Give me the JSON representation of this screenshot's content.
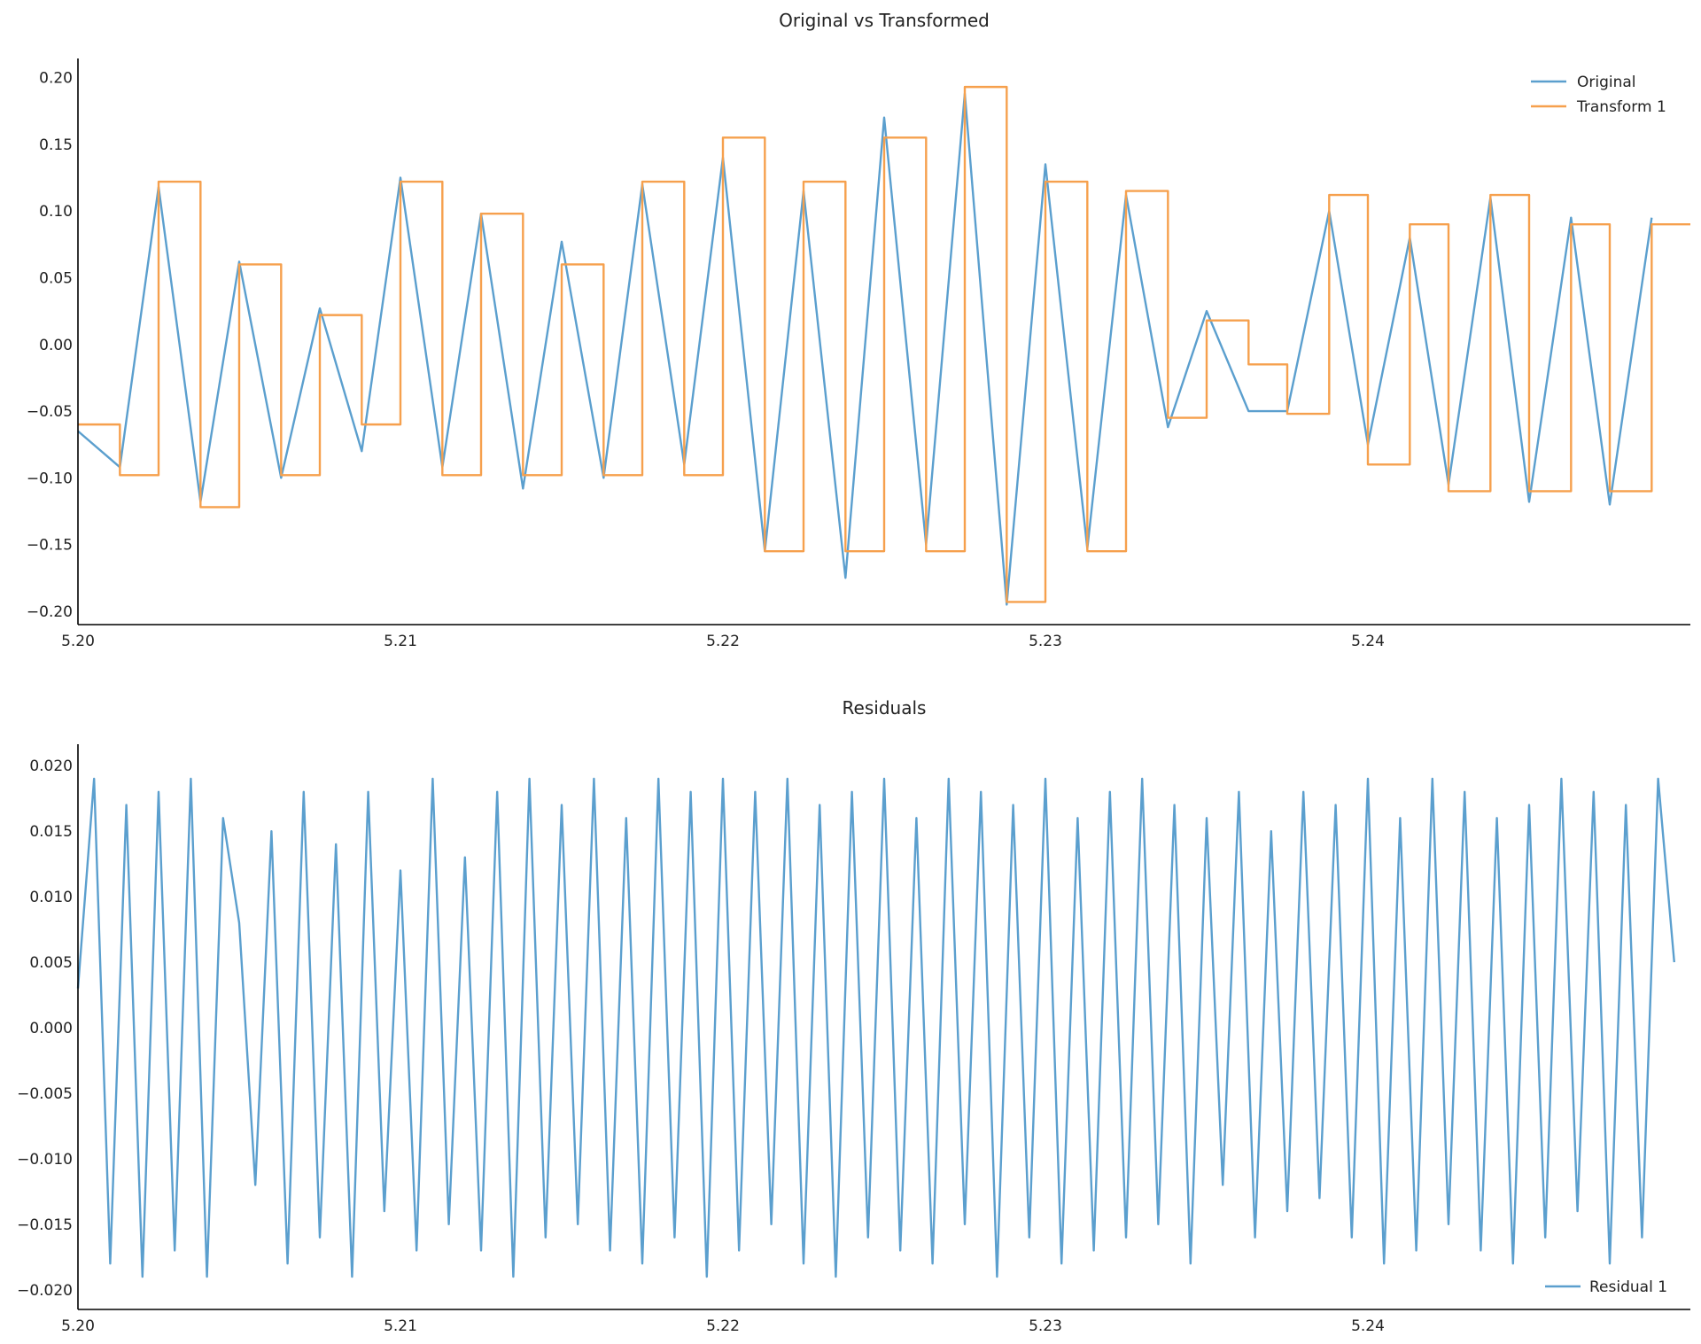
{
  "colors": {
    "original": "#5b9fce",
    "transform": "#f6a04d",
    "residual": "#5b9fce",
    "axis": "#000000"
  },
  "chart_data": [
    {
      "type": "line",
      "title": "Original vs Transformed",
      "xlim": [
        5.2,
        5.25
      ],
      "ylim": [
        -0.21,
        0.213
      ],
      "xticks": [
        5.2,
        5.21,
        5.22,
        5.23,
        5.24
      ],
      "xtick_labels": [
        "5.20",
        "5.21",
        "5.22",
        "5.23",
        "5.24"
      ],
      "yticks": [
        -0.2,
        -0.15,
        -0.1,
        -0.05,
        0.0,
        0.05,
        0.1,
        0.15,
        0.2
      ],
      "ytick_labels": [
        "−0.20",
        "−0.15",
        "−0.10",
        "−0.05",
        "0.00",
        "0.05",
        "0.10",
        "0.15",
        "0.20"
      ],
      "grid": false,
      "legend": "top-right",
      "series": [
        {
          "name": "Original",
          "style": "line",
          "x": [
            5.2,
            5.2013,
            5.2025,
            5.2038,
            5.205,
            5.2063,
            5.2075,
            5.2088,
            5.21,
            5.2113,
            5.2125,
            5.2138,
            5.215,
            5.2163,
            5.2175,
            5.2188,
            5.22,
            5.2213,
            5.2225,
            5.2238,
            5.225,
            5.2263,
            5.2275,
            5.2288,
            5.23,
            5.2313,
            5.2325,
            5.2338,
            5.235,
            5.2363,
            5.2375,
            5.2388,
            5.24,
            5.2413,
            5.2425,
            5.2438,
            5.245,
            5.2463,
            5.2475,
            5.2488
          ],
          "y": [
            -0.065,
            -0.092,
            0.118,
            -0.118,
            0.062,
            -0.1,
            0.027,
            -0.08,
            0.125,
            -0.092,
            0.098,
            -0.108,
            0.077,
            -0.1,
            0.12,
            -0.09,
            0.14,
            -0.155,
            0.115,
            -0.175,
            0.17,
            -0.15,
            0.188,
            -0.195,
            0.135,
            -0.153,
            0.112,
            -0.062,
            0.025,
            -0.05,
            -0.05,
            0.1,
            -0.075,
            0.08,
            -0.105,
            0.11,
            -0.118,
            0.095,
            -0.12,
            0.095
          ]
        },
        {
          "name": "Transform 1",
          "style": "step",
          "x": [
            5.2,
            5.2013,
            5.2025,
            5.2038,
            5.205,
            5.2063,
            5.2075,
            5.2088,
            5.21,
            5.2113,
            5.2125,
            5.2138,
            5.215,
            5.2163,
            5.2175,
            5.2188,
            5.22,
            5.2213,
            5.2225,
            5.2238,
            5.225,
            5.2263,
            5.2275,
            5.2288,
            5.23,
            5.2313,
            5.2325,
            5.2338,
            5.235,
            5.2363,
            5.2375,
            5.2388,
            5.24,
            5.2413,
            5.2425,
            5.2438,
            5.245,
            5.2463,
            5.2475,
            5.2488
          ],
          "y": [
            -0.06,
            -0.098,
            0.122,
            -0.122,
            0.06,
            -0.098,
            0.022,
            -0.06,
            0.122,
            -0.098,
            0.098,
            -0.098,
            0.06,
            -0.098,
            0.122,
            -0.098,
            0.155,
            -0.155,
            0.122,
            -0.155,
            0.155,
            -0.155,
            0.193,
            -0.193,
            0.122,
            -0.155,
            0.115,
            -0.055,
            0.018,
            -0.015,
            -0.052,
            0.112,
            -0.09,
            0.09,
            -0.11,
            0.112,
            -0.11,
            0.09,
            -0.11,
            0.09
          ]
        }
      ]
    },
    {
      "type": "line",
      "title": "Residuals",
      "xlim": [
        5.2,
        5.25
      ],
      "ylim": [
        -0.0215,
        0.0215
      ],
      "xticks": [
        5.2,
        5.21,
        5.22,
        5.23,
        5.24
      ],
      "xtick_labels": [
        "5.20",
        "5.21",
        "5.22",
        "5.23",
        "5.24"
      ],
      "yticks": [
        -0.02,
        -0.015,
        -0.01,
        -0.005,
        0.0,
        0.005,
        0.01,
        0.015,
        0.02
      ],
      "ytick_labels": [
        "−0.020",
        "−0.015",
        "−0.010",
        "−0.005",
        "0.000",
        "0.005",
        "0.010",
        "0.015",
        "0.020"
      ],
      "grid": false,
      "legend": "bottom-right",
      "series": [
        {
          "name": "Residual 1",
          "style": "line",
          "x": [
            5.2,
            5.2005,
            5.201,
            5.2015,
            5.202,
            5.2025,
            5.203,
            5.2035,
            5.204,
            5.2045,
            5.205,
            5.2055,
            5.206,
            5.2065,
            5.207,
            5.2075,
            5.208,
            5.2085,
            5.209,
            5.2095,
            5.21,
            5.2105,
            5.211,
            5.2115,
            5.212,
            5.2125,
            5.213,
            5.2135,
            5.214,
            5.2145,
            5.215,
            5.2155,
            5.216,
            5.2165,
            5.217,
            5.2175,
            5.218,
            5.2185,
            5.219,
            5.2195,
            5.22,
            5.2205,
            5.221,
            5.2215,
            5.222,
            5.2225,
            5.223,
            5.2235,
            5.224,
            5.2245,
            5.225,
            5.2255,
            5.226,
            5.2265,
            5.227,
            5.2275,
            5.228,
            5.2285,
            5.229,
            5.2295,
            5.23,
            5.2305,
            5.231,
            5.2315,
            5.232,
            5.2325,
            5.233,
            5.2335,
            5.234,
            5.2345,
            5.235,
            5.2355,
            5.236,
            5.2365,
            5.237,
            5.2375,
            5.238,
            5.2385,
            5.239,
            5.2395,
            5.24,
            5.2405,
            5.241,
            5.2415,
            5.242,
            5.2425,
            5.243,
            5.2435,
            5.244,
            5.2445,
            5.245,
            5.2455,
            5.246,
            5.2465,
            5.247,
            5.2475,
            5.248,
            5.2485,
            5.249,
            5.2495
          ],
          "y": [
            0.003,
            0.019,
            -0.018,
            0.017,
            -0.019,
            0.018,
            -0.017,
            0.019,
            -0.019,
            0.016,
            0.008,
            -0.012,
            0.015,
            -0.018,
            0.018,
            -0.016,
            0.014,
            -0.019,
            0.018,
            -0.014,
            0.012,
            -0.017,
            0.019,
            -0.015,
            0.013,
            -0.017,
            0.018,
            -0.019,
            0.019,
            -0.016,
            0.017,
            -0.015,
            0.019,
            -0.017,
            0.016,
            -0.018,
            0.019,
            -0.016,
            0.018,
            -0.019,
            0.019,
            -0.017,
            0.018,
            -0.015,
            0.019,
            -0.018,
            0.017,
            -0.019,
            0.018,
            -0.016,
            0.019,
            -0.017,
            0.016,
            -0.018,
            0.019,
            -0.015,
            0.018,
            -0.019,
            0.017,
            -0.016,
            0.019,
            -0.018,
            0.016,
            -0.017,
            0.018,
            -0.016,
            0.019,
            -0.015,
            0.017,
            -0.018,
            0.016,
            -0.012,
            0.018,
            -0.016,
            0.015,
            -0.014,
            0.018,
            -0.013,
            0.017,
            -0.016,
            0.019,
            -0.018,
            0.016,
            -0.017,
            0.019,
            -0.015,
            0.018,
            -0.017,
            0.016,
            -0.018,
            0.017,
            -0.016,
            0.019,
            -0.014,
            0.018,
            -0.018,
            0.017,
            -0.016,
            0.019,
            0.005
          ]
        }
      ]
    }
  ]
}
